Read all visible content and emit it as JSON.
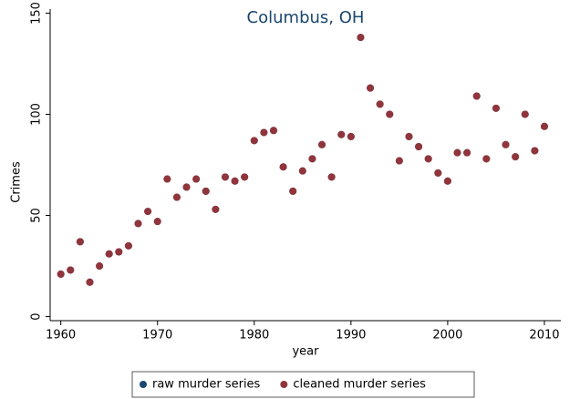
{
  "chart_data": {
    "type": "scatter",
    "title": "Columbus, OH",
    "x_label": "year",
    "y_label": "Crimes",
    "xlim": [
      1958.9,
      2011.7
    ],
    "ylim": [
      -2,
      152
    ],
    "xticks": [
      1960,
      1970,
      1980,
      1990,
      2000,
      2010
    ],
    "yticks": [
      0,
      50,
      100,
      150
    ],
    "x": [
      1960,
      1961,
      1962,
      1963,
      1964,
      1965,
      1966,
      1967,
      1968,
      1969,
      1970,
      1971,
      1972,
      1973,
      1974,
      1975,
      1976,
      1977,
      1978,
      1979,
      1980,
      1981,
      1982,
      1983,
      1984,
      1985,
      1986,
      1987,
      1988,
      1989,
      1990,
      1991,
      1992,
      1993,
      1994,
      1995,
      1996,
      1997,
      1998,
      1999,
      2000,
      2001,
      2002,
      2003,
      2004,
      2005,
      2006,
      2007,
      2008,
      2009,
      2010
    ],
    "series": [
      {
        "name": "raw murder series",
        "color": "#1a476f",
        "values": [
          21,
          23,
          37,
          17,
          25,
          31,
          32,
          35,
          46,
          52,
          47,
          68,
          59,
          64,
          68,
          62,
          53,
          69,
          67,
          69,
          87,
          91,
          92,
          74,
          62,
          72,
          78,
          85,
          69,
          90,
          89,
          138,
          113,
          105,
          100,
          77,
          89,
          84,
          78,
          71,
          67,
          81,
          81,
          109,
          78,
          103,
          85,
          79,
          100,
          82,
          94
        ]
      },
      {
        "name": "cleaned murder series",
        "color": "#90353b",
        "values": [
          21,
          23,
          37,
          17,
          25,
          31,
          32,
          35,
          46,
          52,
          47,
          68,
          59,
          64,
          68,
          62,
          53,
          69,
          67,
          69,
          87,
          91,
          92,
          74,
          62,
          72,
          78,
          85,
          69,
          90,
          89,
          138,
          113,
          105,
          100,
          77,
          89,
          84,
          78,
          71,
          67,
          81,
          81,
          109,
          78,
          103,
          85,
          79,
          100,
          82,
          94
        ]
      }
    ],
    "legend": "bottom"
  }
}
